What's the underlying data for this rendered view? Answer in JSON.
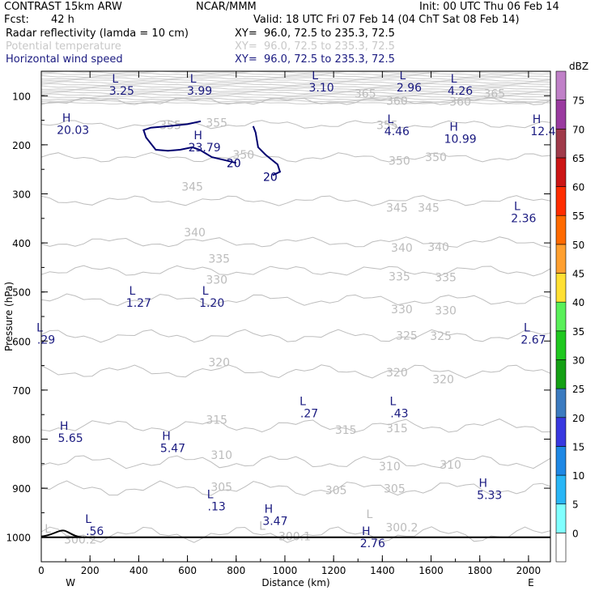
{
  "header": {
    "title": "CONTRAST 15km ARW",
    "center": "NCAR/MMM",
    "init": "Init: 00 UTC Thu 06 Feb 14",
    "fcst_label": "Fcst:",
    "fcst_value": "42 h",
    "valid": "Valid: 18 UTC Fri 07 Feb 14 (04 ChT Sat 08 Feb 14)"
  },
  "fields": [
    {
      "name": "Radar reflectivity (lamda = 10 cm)",
      "xy": "XY=  96.0, 72.5 to 235.3, 72.5",
      "color": "#000000"
    },
    {
      "name": "Potential temperature",
      "xy": "XY=  96.0, 72.5 to 235.3, 72.5",
      "color": "#c8c8c8"
    },
    {
      "name": "Horizontal wind speed",
      "xy": "XY=  96.0, 72.5 to 235.3, 72.5",
      "color": "#1a1a80"
    }
  ],
  "chart_data": {
    "type": "contour-cross-section",
    "xlabel": "Distance (km)",
    "ylabel": "Pressure (hPa)",
    "xlim": [
      0,
      2090
    ],
    "ylim": [
      50,
      1050
    ],
    "x_ticks": [
      0,
      200,
      400,
      600,
      800,
      1000,
      1200,
      1400,
      1600,
      1800,
      2000
    ],
    "y_ticks": [
      100,
      200,
      300,
      400,
      500,
      600,
      700,
      800,
      900,
      1000
    ],
    "x_end_labels": {
      "left": "W",
      "right": "E"
    },
    "theta_contours": [
      {
        "level": 365,
        "labels": [
          {
            "text": "365",
            "x": 1330,
            "p": 95
          },
          {
            "text": "365",
            "x": 1860,
            "p": 95
          }
        ]
      },
      {
        "level": 360,
        "labels": [
          {
            "text": "360",
            "x": 1460,
            "p": 110
          },
          {
            "text": "360",
            "x": 1720,
            "p": 112
          }
        ]
      },
      {
        "level": 355,
        "labels": [
          {
            "text": "355",
            "x": 530,
            "p": 160
          },
          {
            "text": "355",
            "x": 720,
            "p": 155
          },
          {
            "text": "355",
            "x": 1420,
            "p": 160
          }
        ]
      },
      {
        "level": 350,
        "labels": [
          {
            "text": "350",
            "x": 830,
            "p": 220
          },
          {
            "text": "350",
            "x": 1470,
            "p": 232
          },
          {
            "text": "350",
            "x": 1620,
            "p": 225
          }
        ]
      },
      {
        "level": 345,
        "labels": [
          {
            "text": "345",
            "x": 620,
            "p": 285
          },
          {
            "text": "345",
            "x": 1460,
            "p": 328
          },
          {
            "text": "345",
            "x": 1590,
            "p": 328
          }
        ]
      },
      {
        "level": 340,
        "labels": [
          {
            "text": "340",
            "x": 630,
            "p": 378
          },
          {
            "text": "340",
            "x": 1480,
            "p": 410
          },
          {
            "text": "340",
            "x": 1630,
            "p": 408
          }
        ]
      },
      {
        "level": 335,
        "labels": [
          {
            "text": "335",
            "x": 730,
            "p": 432
          },
          {
            "text": "335",
            "x": 1470,
            "p": 468
          },
          {
            "text": "335",
            "x": 1660,
            "p": 470
          }
        ]
      },
      {
        "level": 330,
        "labels": [
          {
            "text": "330",
            "x": 720,
            "p": 475
          },
          {
            "text": "330",
            "x": 1480,
            "p": 535
          },
          {
            "text": "330",
            "x": 1660,
            "p": 538
          }
        ]
      },
      {
        "level": 325,
        "labels": [
          {
            "text": "325",
            "x": 1500,
            "p": 589
          },
          {
            "text": "325",
            "x": 1640,
            "p": 590
          }
        ]
      },
      {
        "level": 320,
        "labels": [
          {
            "text": "320",
            "x": 730,
            "p": 643
          },
          {
            "text": "320",
            "x": 1460,
            "p": 664
          },
          {
            "text": "320",
            "x": 1650,
            "p": 678
          }
        ]
      },
      {
        "level": 315,
        "labels": [
          {
            "text": "315",
            "x": 720,
            "p": 760
          },
          {
            "text": "315",
            "x": 1250,
            "p": 781
          },
          {
            "text": "315",
            "x": 1460,
            "p": 778
          }
        ]
      },
      {
        "level": 310,
        "labels": [
          {
            "text": "310",
            "x": 740,
            "p": 832
          },
          {
            "text": "310",
            "x": 1430,
            "p": 855
          },
          {
            "text": "310",
            "x": 1680,
            "p": 852
          }
        ]
      },
      {
        "level": 305,
        "labels": [
          {
            "text": "305",
            "x": 740,
            "p": 897
          },
          {
            "text": "305",
            "x": 1210,
            "p": 904
          },
          {
            "text": "305",
            "x": 1450,
            "p": 901
          }
        ]
      },
      {
        "level": 300,
        "labels": [
          {
            "text": "300.2",
            "x": 160,
            "p": 1005
          },
          {
            "text": "300.1",
            "x": 1040,
            "p": 998
          },
          {
            "text": "300.2",
            "x": 1480,
            "p": 980
          }
        ]
      }
    ],
    "extrema_theta": [
      {
        "type": "L",
        "value": "300.2",
        "x": 160,
        "p": 1004
      },
      {
        "type": "L",
        "value": "300.1",
        "x": 1040,
        "p": 998
      },
      {
        "type": "L",
        "value": "300.2",
        "x": 1480,
        "p": 974
      }
    ],
    "extrema_wind": [
      {
        "type": "L",
        "value": "3.25",
        "x": 330,
        "p": 80
      },
      {
        "type": "L",
        "value": "3.99",
        "x": 650,
        "p": 80
      },
      {
        "type": "L",
        "value": "3.10",
        "x": 1150,
        "p": 73
      },
      {
        "type": "L",
        "value": "2.96",
        "x": 1510,
        "p": 73
      },
      {
        "type": "L",
        "value": "4.26",
        "x": 1720,
        "p": 80
      },
      {
        "type": "H",
        "value": "20.03",
        "x": 130,
        "p": 160
      },
      {
        "type": "H",
        "value": "23.79",
        "x": 670,
        "p": 195
      },
      {
        "type": "L",
        "value": "4.46",
        "x": 1460,
        "p": 162
      },
      {
        "type": "H",
        "value": "10.99",
        "x": 1720,
        "p": 178
      },
      {
        "type": "H",
        "value": "12.4",
        "x": 2060,
        "p": 162
      },
      {
        "type": "L",
        "value": "2.36",
        "x": 1980,
        "p": 340
      },
      {
        "type": "L",
        "value": "1.27",
        "x": 400,
        "p": 512
      },
      {
        "type": "L",
        "value": "1.20",
        "x": 700,
        "p": 512
      },
      {
        "type": "L",
        "value": ".29",
        "x": 20,
        "p": 587
      },
      {
        "type": "L",
        "value": "2.67",
        "x": 2020,
        "p": 587
      },
      {
        "type": "L",
        "value": ".27",
        "x": 1100,
        "p": 737
      },
      {
        "type": "L",
        "value": ".43",
        "x": 1470,
        "p": 737
      },
      {
        "type": "H",
        "value": "5.65",
        "x": 120,
        "p": 788
      },
      {
        "type": "H",
        "value": "5.47",
        "x": 540,
        "p": 808
      },
      {
        "type": "H",
        "value": "5.33",
        "x": 1840,
        "p": 904
      },
      {
        "type": "L",
        "value": ".13",
        "x": 720,
        "p": 927
      },
      {
        "type": "H",
        "value": "3.47",
        "x": 960,
        "p": 957
      },
      {
        "type": "L",
        "value": ".56",
        "x": 220,
        "p": 977
      },
      {
        "type": "H",
        "value": "2.76",
        "x": 1360,
        "p": 1002
      }
    ],
    "wind_contours": [
      {
        "level": 20,
        "labels": [
          {
            "text": "20",
            "x": 790,
            "p": 237
          },
          {
            "text": "20",
            "x": 940,
            "p": 265
          }
        ]
      }
    ],
    "colorbar": {
      "title": "dBZ",
      "levels": [
        0,
        5,
        10,
        15,
        20,
        25,
        30,
        35,
        40,
        45,
        50,
        55,
        60,
        65,
        70,
        75
      ],
      "colors": [
        "#ffffff",
        "#80ffff",
        "#29b6f6",
        "#1e88e5",
        "#3838e0",
        "#3b7bc0",
        "#14a014",
        "#1fc81f",
        "#59f059",
        "#ffe033",
        "#ffa030",
        "#ff6a00",
        "#ff2d00",
        "#cc1515",
        "#a03a4a",
        "#9a3aa0",
        "#c080c8"
      ]
    }
  }
}
